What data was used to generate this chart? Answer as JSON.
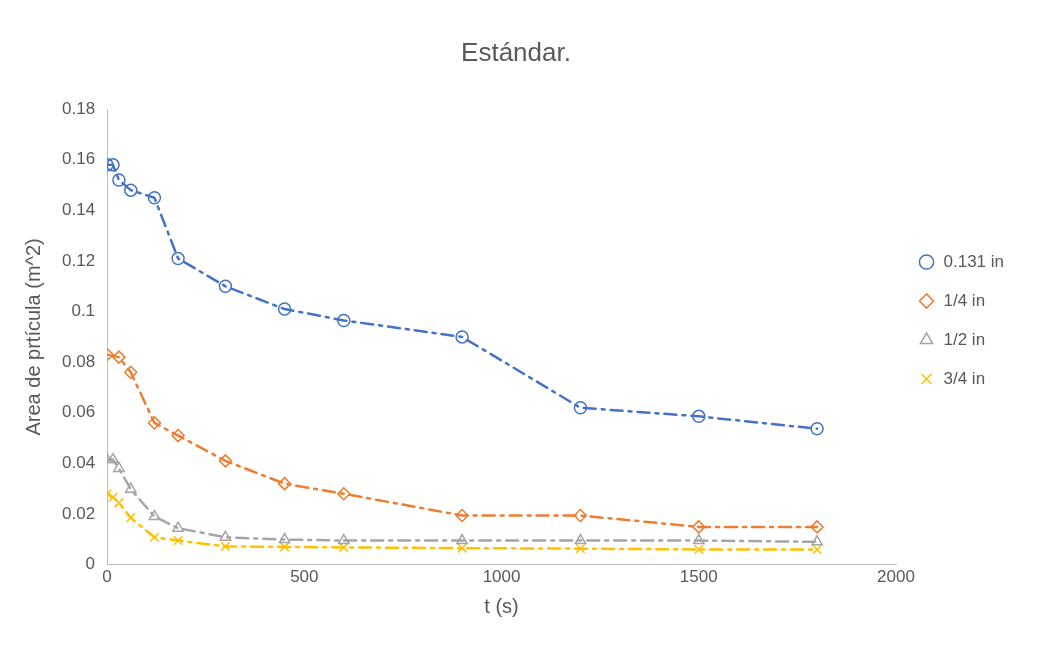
{
  "chart_data": {
    "type": "line",
    "title": "Estándar.",
    "xlabel": "t (s)",
    "ylabel": "Area de prtícula (m^2)",
    "xlim": [
      0,
      2000
    ],
    "xticks": [
      0,
      500,
      1000,
      1500,
      2000
    ],
    "ylim": [
      0,
      0.18
    ],
    "yticks": [
      0,
      0.02,
      0.04,
      0.06,
      0.08,
      0.1,
      0.12,
      0.14,
      0.16,
      0.18
    ],
    "grid": false,
    "legend": "right",
    "line_style": "dashed",
    "series": [
      {
        "name": "0.131 in",
        "marker": "circle",
        "color": "#4472c4",
        "x": [
          0,
          15,
          30,
          60,
          120,
          180,
          300,
          450,
          600,
          900,
          1200,
          1500,
          1800
        ],
        "values": [
          0.158,
          0.158,
          0.152,
          0.148,
          0.145,
          0.121,
          0.11,
          0.101,
          0.0965,
          0.09,
          0.062,
          0.0586,
          0.0537
        ]
      },
      {
        "name": "1/4 in",
        "marker": "diamond",
        "color": "#ed7d31",
        "x": [
          0,
          30,
          60,
          120,
          180,
          300,
          450,
          600,
          900,
          1200,
          1500,
          1800
        ],
        "values": [
          0.083,
          0.082,
          0.076,
          0.056,
          0.051,
          0.041,
          0.032,
          0.028,
          0.0194,
          0.0194,
          0.0149,
          0.0149
        ]
      },
      {
        "name": "1/2 in",
        "marker": "triangle",
        "color": "#a5a5a5",
        "x": [
          0,
          15,
          30,
          60,
          120,
          180,
          300,
          450,
          600,
          900,
          1200,
          1500,
          1800
        ],
        "values": [
          0.0415,
          0.0415,
          0.038,
          0.0298,
          0.019,
          0.0144,
          0.0108,
          0.0099,
          0.0095,
          0.0095,
          0.0095,
          0.0095,
          0.009
        ]
      },
      {
        "name": "3/4 in",
        "marker": "cross",
        "color": "#ffc000",
        "x": [
          0,
          15,
          30,
          60,
          120,
          180,
          300,
          450,
          600,
          900,
          1200,
          1500,
          1800
        ],
        "values": [
          0.028,
          0.0266,
          0.0244,
          0.0185,
          0.0108,
          0.0095,
          0.0072,
          0.007,
          0.0068,
          0.0065,
          0.0063,
          0.006,
          0.006
        ]
      }
    ]
  }
}
